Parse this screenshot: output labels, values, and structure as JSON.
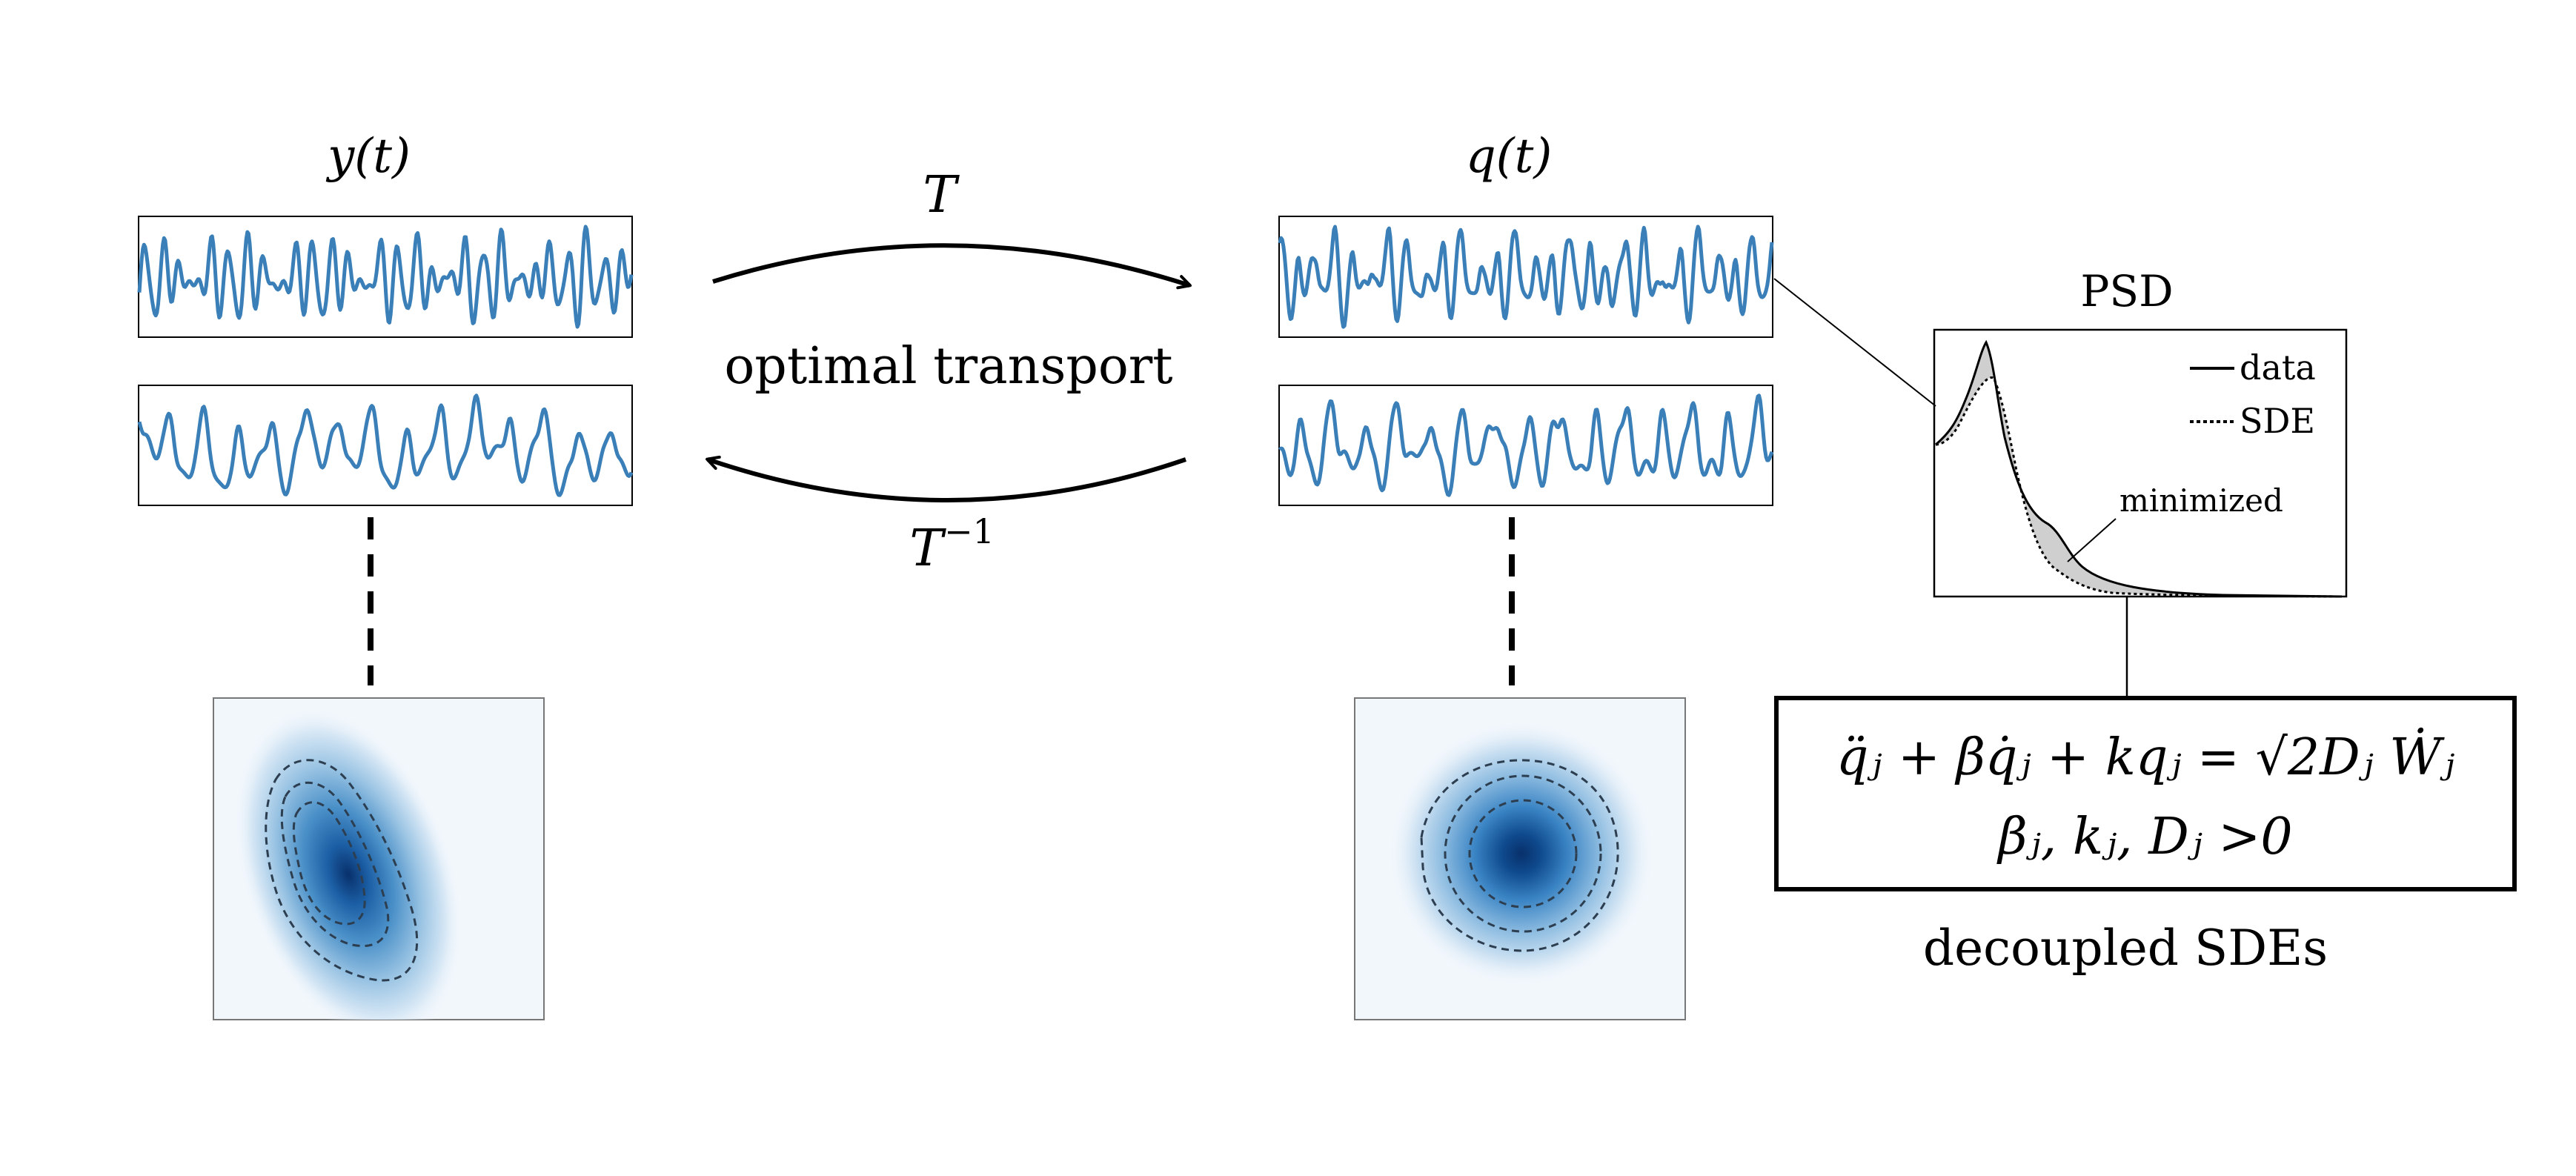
{
  "labels": {
    "y_t": "y(t)",
    "q_t": "q(t)",
    "T": "T",
    "T_inv_base": "T",
    "T_inv_exp": "−1",
    "optimal_transport": "optimal transport",
    "psd_title": "PSD",
    "legend_data": "data",
    "legend_sde": "SDE",
    "minimized": "minimized",
    "decoupled": "decoupled SDEs"
  },
  "equations": {
    "line1": "q̈ⱼ + βq̇ⱼ + kqⱼ = √2Dⱼ Ẇⱼ",
    "line2": "βⱼ, kⱼ, Dⱼ >0"
  },
  "colors": {
    "signal": "#3a7fb8",
    "density_core": "#08306b",
    "density_mid": "#4a90c8",
    "density_bg": "#f2f7fc",
    "contour": "#2c3e50",
    "psd_fill": "#cfcfcf",
    "ink": "#000000"
  }
}
